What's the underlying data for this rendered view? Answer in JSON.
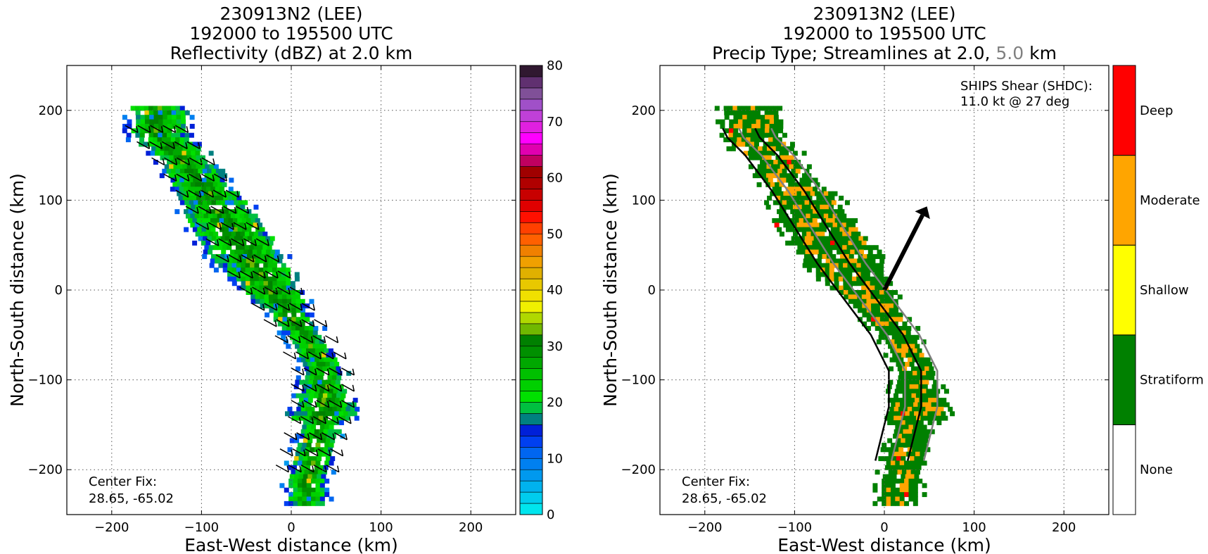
{
  "chart_data": [
    {
      "type": "heatmap",
      "title_lines": [
        "230913N2 (LEE)",
        "192000 to 195500 UTC",
        "Reflectivity (dBZ) at 2.0 km"
      ],
      "xlabel": "East-West distance (km)",
      "ylabel": "North-South distance (km)",
      "xlim": [
        -250,
        250
      ],
      "ylim": [
        -250,
        250
      ],
      "xticks": [
        -200,
        -100,
        0,
        100,
        200
      ],
      "yticks": [
        -200,
        -100,
        0,
        100,
        200
      ],
      "grid": true,
      "annotation": [
        "Center Fix:",
        "28.65, -65.02"
      ],
      "colorbar": {
        "label_values": [
          0,
          10,
          20,
          30,
          40,
          50,
          60,
          70,
          80
        ],
        "range": [
          0,
          80
        ],
        "step": 2.5,
        "colors": [
          "#00e5ee",
          "#00ccee",
          "#00b2ee",
          "#0099ee",
          "#0080f0",
          "#0066f0",
          "#0040f0",
          "#0020d8",
          "#008080",
          "#00c040",
          "#00e000",
          "#00d000",
          "#00c000",
          "#00a800",
          "#009000",
          "#008000",
          "#70b800",
          "#b0d800",
          "#f0f000",
          "#f0e000",
          "#e8c800",
          "#e0b000",
          "#f0a000",
          "#f08000",
          "#ff6000",
          "#ff4000",
          "#ff1000",
          "#e00000",
          "#c80000",
          "#b00000",
          "#a00000",
          "#c00060",
          "#e000b0",
          "#ff00ff",
          "#e020e0",
          "#c040d8",
          "#a050c8",
          "#805098",
          "#603070",
          "#301830"
        ]
      },
      "band": [
        {
          "x": -150,
          "y": 175
        },
        {
          "x": -125,
          "y": 150
        },
        {
          "x": -95,
          "y": 110
        },
        {
          "x": -70,
          "y": 70
        },
        {
          "x": -45,
          "y": 30
        },
        {
          "x": -15,
          "y": -10
        },
        {
          "x": 15,
          "y": -50
        },
        {
          "x": 35,
          "y": -90
        },
        {
          "x": 35,
          "y": -130
        },
        {
          "x": 25,
          "y": -170
        },
        {
          "x": 15,
          "y": -210
        }
      ]
    },
    {
      "type": "heatmap",
      "title_lines": [
        "230913N2 (LEE)",
        "192000 to 195500 UTC",
        "Precip Type; Streamlines at 2.0, ",
        "5.0",
        " km"
      ],
      "xlabel": "East-West distance (km)",
      "ylabel": "North-South distance (km)",
      "xlim": [
        -250,
        250
      ],
      "ylim": [
        -250,
        250
      ],
      "xticks": [
        -200,
        -100,
        0,
        100,
        200
      ],
      "yticks": [
        -200,
        -100,
        0,
        100,
        200
      ],
      "grid": true,
      "annotation": [
        "Center Fix:",
        "28.65, -65.02"
      ],
      "shear_annotation": [
        "SHIPS Shear (SHDC):",
        "11.0 kt @ 27 deg"
      ],
      "shear_vector": {
        "magnitude_kt": 11.0,
        "direction_deg": 27
      },
      "streamline_colors": {
        "2.0 km": "#000000",
        "5.0 km": "#808080"
      },
      "colorbar": {
        "categories": [
          "None",
          "Stratiform",
          "Shallow",
          "Moderate",
          "Deep"
        ],
        "colors": [
          "#ffffff",
          "#008000",
          "#ffff00",
          "#ffa500",
          "#ff0000"
        ]
      }
    }
  ]
}
